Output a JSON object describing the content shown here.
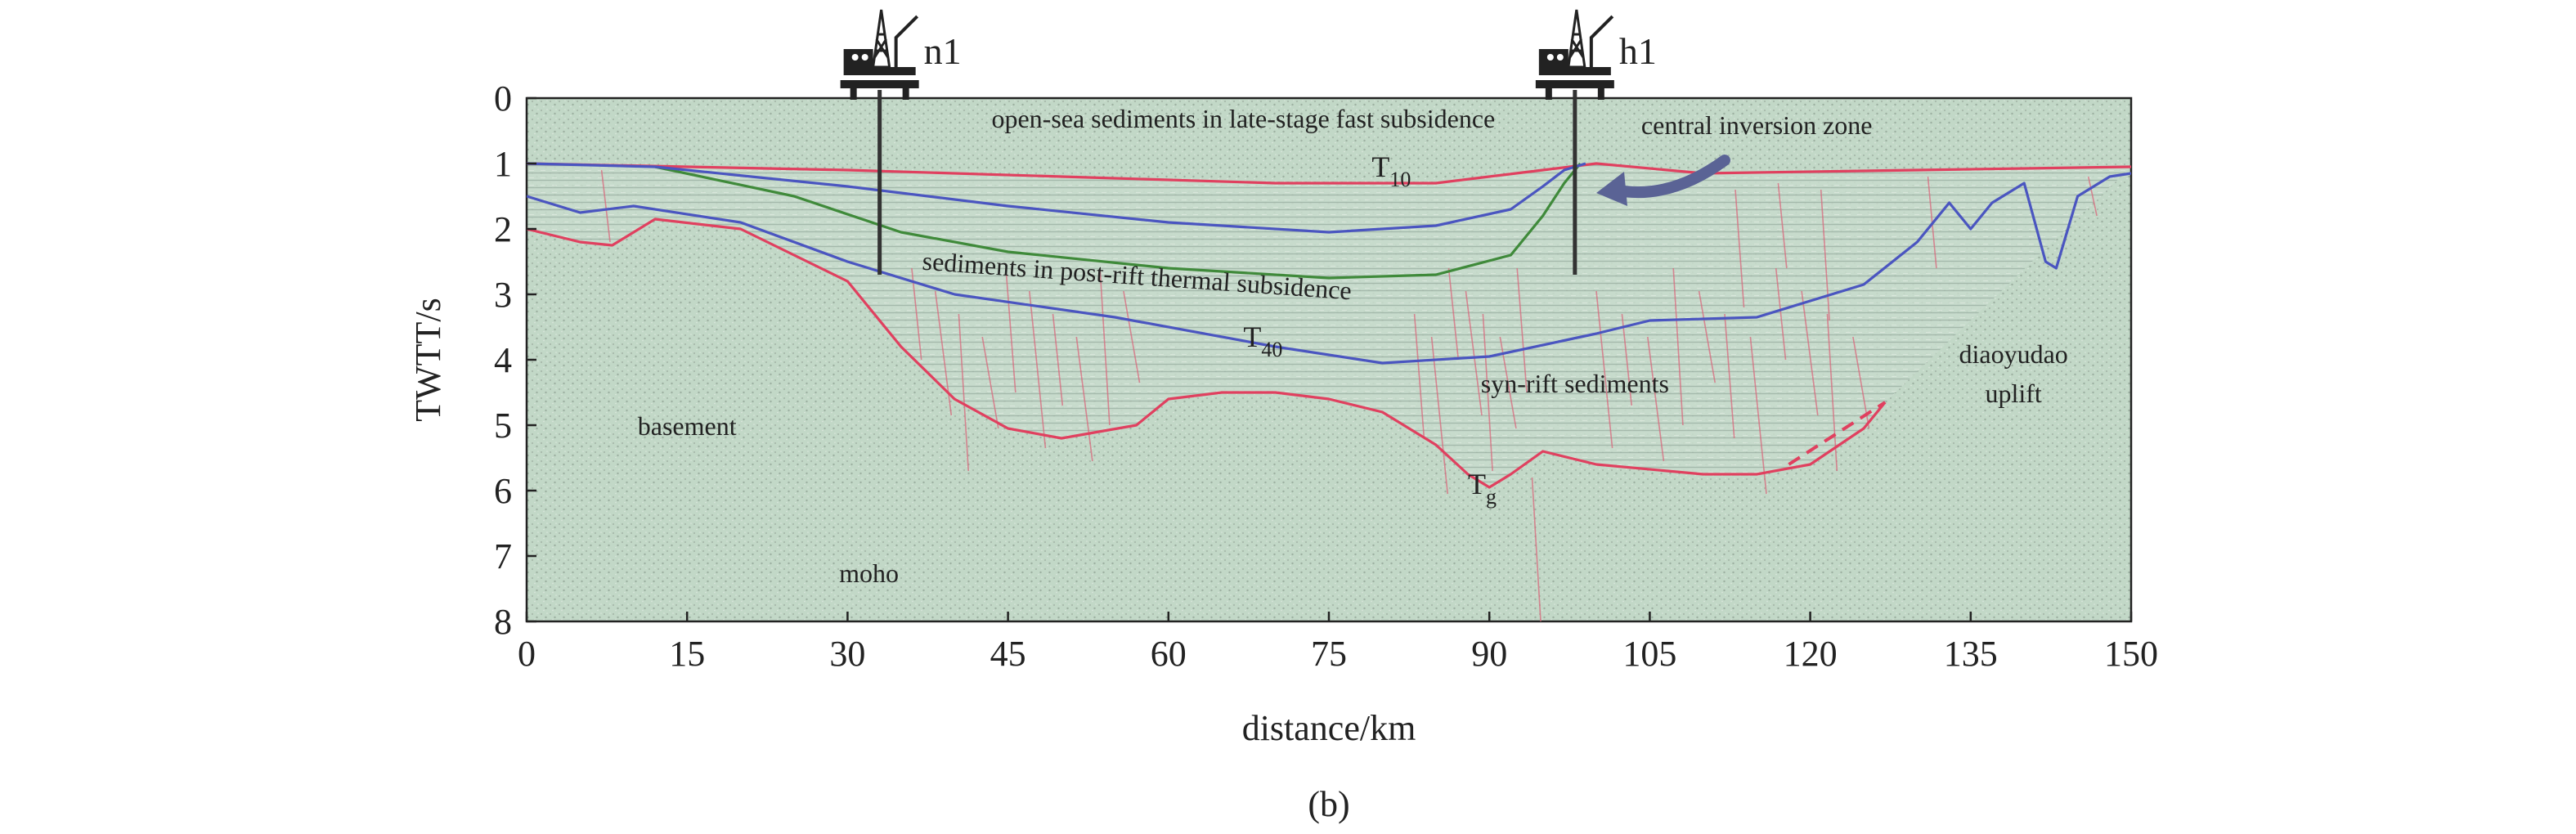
{
  "chart_data": {
    "type": "line",
    "subtitle": "(b)",
    "xlabel": "distance/km",
    "ylabel": "TWTT/s",
    "xlim": [
      0,
      150
    ],
    "ylim": [
      0,
      8
    ],
    "y_inverted": true,
    "x_ticks": [
      "0",
      "15",
      "30",
      "45",
      "60",
      "75",
      "90",
      "105",
      "120",
      "135",
      "150"
    ],
    "y_ticks": [
      "0",
      "1",
      "2",
      "3",
      "4",
      "5",
      "6",
      "7",
      "8"
    ],
    "background": "seismic reflection section",
    "wells": [
      {
        "label": "n1",
        "x": 33,
        "depth": 2.7
      },
      {
        "label": "h1",
        "x": 98,
        "depth": 2.7
      }
    ],
    "series": [
      {
        "name": "T10",
        "color": "#e0405f",
        "x": [
          0,
          15,
          30,
          50,
          70,
          85,
          95,
          100,
          110,
          130,
          150
        ],
        "y": [
          1.0,
          1.05,
          1.1,
          1.2,
          1.3,
          1.3,
          1.1,
          1.0,
          1.15,
          1.1,
          1.05
        ]
      },
      {
        "name": "",
        "color": "#3f8a3a",
        "x": [
          12,
          25,
          35,
          45,
          60,
          75,
          85,
          92,
          95,
          97,
          98.5
        ],
        "y": [
          1.05,
          1.5,
          2.05,
          2.35,
          2.6,
          2.75,
          2.7,
          2.4,
          1.8,
          1.3,
          1.0
        ]
      },
      {
        "name": "",
        "color": "#4a55c0",
        "x": [
          0,
          12,
          30,
          45,
          60,
          75,
          85,
          92,
          95,
          97,
          99
        ],
        "y": [
          1.0,
          1.05,
          1.35,
          1.65,
          1.9,
          2.05,
          1.95,
          1.7,
          1.35,
          1.1,
          1.0
        ]
      },
      {
        "name": "T40",
        "color": "#4a55c0",
        "x": [
          0,
          5,
          10,
          20,
          30,
          40,
          55,
          70,
          80,
          90,
          100,
          105,
          115,
          125,
          130,
          133,
          135,
          137,
          140,
          142,
          143,
          145,
          148,
          150
        ],
        "y": [
          1.5,
          1.75,
          1.65,
          1.9,
          2.5,
          3.0,
          3.35,
          3.8,
          4.05,
          3.95,
          3.6,
          3.4,
          3.35,
          2.85,
          2.2,
          1.6,
          2.0,
          1.6,
          1.3,
          2.5,
          2.6,
          1.5,
          1.2,
          1.15
        ]
      },
      {
        "name": "Tg",
        "color": "#e0405f",
        "x": [
          0,
          5,
          8,
          12,
          20,
          30,
          35,
          40,
          45,
          50,
          57,
          60,
          65,
          70,
          75,
          80,
          85,
          88,
          90,
          92,
          95,
          100,
          110,
          115,
          120,
          125,
          127
        ],
        "y": [
          2.0,
          2.2,
          2.25,
          1.85,
          2.0,
          2.8,
          3.8,
          4.6,
          5.05,
          5.2,
          5.0,
          4.6,
          4.5,
          4.5,
          4.6,
          4.8,
          5.3,
          5.75,
          5.95,
          5.75,
          5.4,
          5.6,
          5.75,
          5.75,
          5.6,
          5.05,
          4.65
        ]
      }
    ],
    "annotations": [
      {
        "text": "open-sea sediments in late-stage fast subsidence",
        "x": 67,
        "y": 0.45
      },
      {
        "text": "central inversion zone",
        "x": 115,
        "y": 0.55
      },
      {
        "text": "sediments in post-rift thermal subsidence",
        "x": 57,
        "y": 2.85
      },
      {
        "text": "syn-rift sediments",
        "x": 98,
        "y": 4.5
      },
      {
        "text": "basement",
        "x": 15,
        "y": 5.15
      },
      {
        "text": "moho",
        "x": 32,
        "y": 7.4
      },
      {
        "text": "diaoyudao",
        "x": 139,
        "y": 4.05
      },
      {
        "text": "uplift",
        "x": 139,
        "y": 4.65
      }
    ],
    "horizon_labels": [
      {
        "main": "T",
        "sub": "10",
        "x": 79,
        "y": 1.2
      },
      {
        "main": "T",
        "sub": "40",
        "x": 67,
        "y": 3.8
      },
      {
        "main": "T",
        "sub": "g",
        "x": 88,
        "y": 6.05
      }
    ],
    "arrow": {
      "from_x": 112,
      "from_y": 0.95,
      "to_x": 100,
      "to_y": 1.45,
      "color": "#5a6395"
    },
    "dashed_segment": {
      "color": "#e0405f",
      "x": [
        118,
        127
      ],
      "y": [
        5.6,
        4.65
      ]
    }
  }
}
